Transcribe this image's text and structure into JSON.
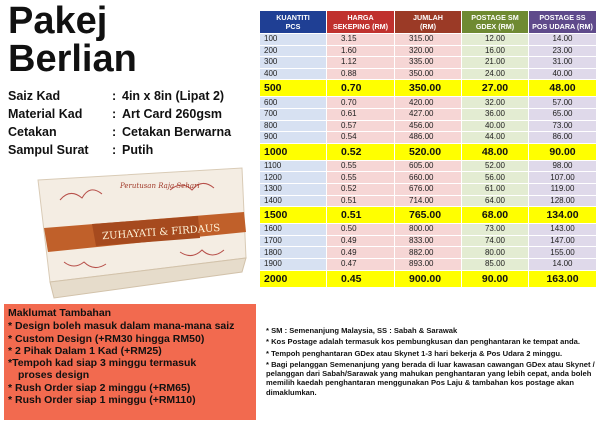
{
  "title": {
    "line1": "Pakej",
    "line2": "Berlian"
  },
  "specs": [
    {
      "label": "Saiz Kad",
      "sep": ":",
      "value": "4in x 8in (Lipat 2)"
    },
    {
      "label": "Material Kad",
      "sep": ":",
      "value": "Art Card 260gsm"
    },
    {
      "label": "Cetakan",
      "sep": ":",
      "value": "Cetakan Berwarna"
    },
    {
      "label": "Sampul Surat",
      "sep": ":",
      "value": "Putih"
    }
  ],
  "card": {
    "heading": "Perutusan Raja Sehari",
    "names": "ZUHAYATI & FIRDAUS"
  },
  "colors": {
    "header_blue": "#1f3f94",
    "header_red": "#c0312e",
    "header_brown": "#9b3a26",
    "header_green": "#6f8a32",
    "header_purple": "#5f4a8b",
    "highlight": "#ffff00",
    "info_bg": "#f26a4f",
    "card_band": "#c0602a"
  },
  "info": {
    "title": "Maklumat Tambahan",
    "items": [
      "* Design boleh masuk dalam mana-mana saiz",
      "* Custom Design (+RM30 hingga RM50)",
      "* 2 Pihak Dalam 1 Kad (+RM25)",
      "*Tempoh kad siap 3 minggu termasuk",
      "proses design",
      "* Rush Order siap 2 minggu (+RM65)",
      "* Rush Order siap 1 minggu (+RM110)"
    ]
  },
  "table": {
    "headers": [
      {
        "line1": "KUANTITI",
        "line2": "PCS"
      },
      {
        "line1": "HARGA",
        "line2": "SEKEPING (RM)"
      },
      {
        "line1": "JUMLAH",
        "line2": "(RM)"
      },
      {
        "line1": "POSTAGE SM",
        "line2": "GDEX (RM)"
      },
      {
        "line1": "POSTAGE SS",
        "line2": "POS UDARA (RM)"
      }
    ],
    "rows": [
      {
        "q": "100",
        "h": "3.15",
        "j": "315.00",
        "sm": "12.00",
        "ss": "14.00",
        "hl": false
      },
      {
        "q": "200",
        "h": "1.60",
        "j": "320.00",
        "sm": "16.00",
        "ss": "23.00",
        "hl": false
      },
      {
        "q": "300",
        "h": "1.12",
        "j": "335.00",
        "sm": "21.00",
        "ss": "31.00",
        "hl": false
      },
      {
        "q": "400",
        "h": "0.88",
        "j": "350.00",
        "sm": "24.00",
        "ss": "40.00",
        "hl": false
      },
      {
        "q": "500",
        "h": "0.70",
        "j": "350.00",
        "sm": "27.00",
        "ss": "48.00",
        "hl": true
      },
      {
        "q": "600",
        "h": "0.70",
        "j": "420.00",
        "sm": "32.00",
        "ss": "57.00",
        "hl": false
      },
      {
        "q": "700",
        "h": "0.61",
        "j": "427.00",
        "sm": "36.00",
        "ss": "65.00",
        "hl": false
      },
      {
        "q": "800",
        "h": "0.57",
        "j": "456.00",
        "sm": "40.00",
        "ss": "73.00",
        "hl": false
      },
      {
        "q": "900",
        "h": "0.54",
        "j": "486.00",
        "sm": "44.00",
        "ss": "86.00",
        "hl": false
      },
      {
        "q": "1000",
        "h": "0.52",
        "j": "520.00",
        "sm": "48.00",
        "ss": "90.00",
        "hl": true
      },
      {
        "q": "1100",
        "h": "0.55",
        "j": "605.00",
        "sm": "52.00",
        "ss": "98.00",
        "hl": false
      },
      {
        "q": "1200",
        "h": "0.55",
        "j": "660.00",
        "sm": "56.00",
        "ss": "107.00",
        "hl": false
      },
      {
        "q": "1300",
        "h": "0.52",
        "j": "676.00",
        "sm": "61.00",
        "ss": "119.00",
        "hl": false
      },
      {
        "q": "1400",
        "h": "0.51",
        "j": "714.00",
        "sm": "64.00",
        "ss": "128.00",
        "hl": false
      },
      {
        "q": "1500",
        "h": "0.51",
        "j": "765.00",
        "sm": "68.00",
        "ss": "134.00",
        "hl": true
      },
      {
        "q": "1600",
        "h": "0.50",
        "j": "800.00",
        "sm": "73.00",
        "ss": "143.00",
        "hl": false
      },
      {
        "q": "1700",
        "h": "0.49",
        "j": "833.00",
        "sm": "74.00",
        "ss": "147.00",
        "hl": false
      },
      {
        "q": "1800",
        "h": "0.49",
        "j": "882.00",
        "sm": "80.00",
        "ss": "155.00",
        "hl": false
      },
      {
        "q": "1900",
        "h": "0.47",
        "j": "893.00",
        "sm": "85.00",
        "ss": "14.00",
        "hl": false
      },
      {
        "q": "2000",
        "h": "0.45",
        "j": "900.00",
        "sm": "90.00",
        "ss": "163.00",
        "hl": true
      }
    ]
  },
  "notes": [
    "* SM : Semenanjung Malaysia, SS : Sabah & Sarawak",
    "* Kos Postage adalah termasuk kos pembungkusan dan penghantaran ke tempat anda.",
    "* Tempoh penghantaran GDex atau Skynet 1-3 hari bekerja & Pos Udara 2 minggu.",
    "* Bagi pelanggan Semenanjung yang berada di luar kawasan cawangan GDex atau Skynet / pelanggan dari Sabah/Sarawak yang mahukan penghantaran yang lebih cepat, anda boleh memilih kaedah penghantaran menggunakan Pos Laju & tambahan kos postage akan dimaklumkan."
  ]
}
